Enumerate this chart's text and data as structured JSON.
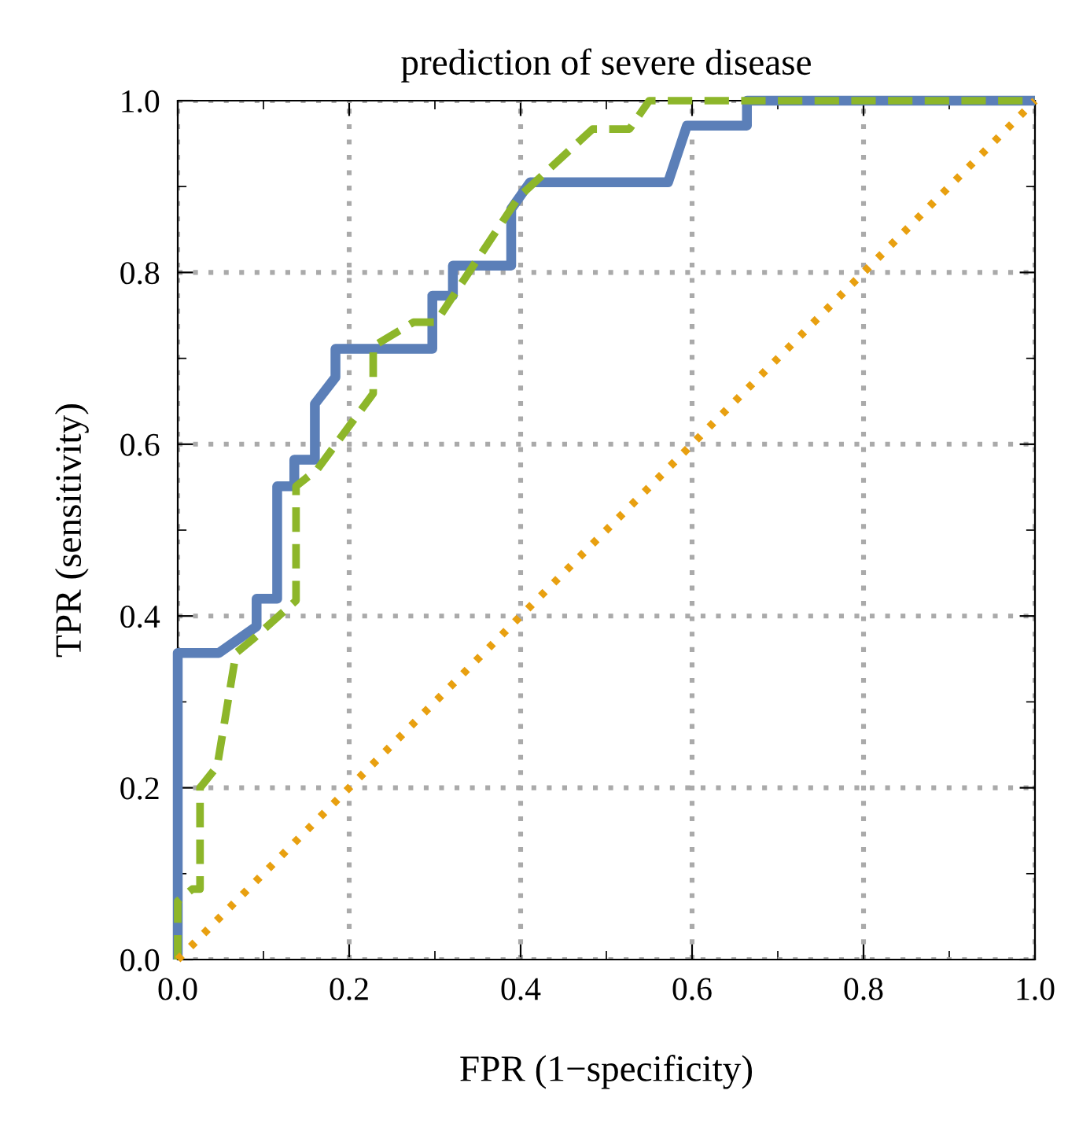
{
  "chart_data": {
    "type": "line",
    "title": "prediction of severe disease",
    "xlabel": "FPR (1−specificity)",
    "ylabel": "TPR (sensitivity)",
    "xlim": [
      0,
      1
    ],
    "ylim": [
      0,
      1
    ],
    "xticks": [
      {
        "value": 0,
        "label": "0.0"
      },
      {
        "value": 0.2,
        "label": "0.2"
      },
      {
        "value": 0.4,
        "label": "0.4"
      },
      {
        "value": 0.6,
        "label": "0.6"
      },
      {
        "value": 0.8,
        "label": "0.8"
      },
      {
        "value": 1,
        "label": "1.0"
      }
    ],
    "yticks": [
      {
        "value": 0,
        "label": "0.0"
      },
      {
        "value": 0.2,
        "label": "0.2"
      },
      {
        "value": 0.4,
        "label": "0.4"
      },
      {
        "value": 0.6,
        "label": "0.6"
      },
      {
        "value": 0.8,
        "label": "0.8"
      },
      {
        "value": 1,
        "label": "1.0"
      }
    ],
    "grid": true,
    "legend": false,
    "marker": "none",
    "series": [
      {
        "color": "#5b7fb8",
        "line_style": "solid",
        "x": [
          0,
          0,
          0.048,
          0.092,
          0.092,
          0.116,
          0.116,
          0.136,
          0.136,
          0.16,
          0.16,
          0.184,
          0.184,
          0.297,
          0.297,
          0.321,
          0.321,
          0.389,
          0.389,
          0.411,
          0.572,
          0.594,
          0.664,
          0.664,
          1
        ],
        "values": [
          0,
          0.357,
          0.357,
          0.388,
          0.42,
          0.42,
          0.551,
          0.551,
          0.582,
          0.582,
          0.647,
          0.678,
          0.711,
          0.711,
          0.773,
          0.773,
          0.808,
          0.808,
          0.874,
          0.905,
          0.905,
          0.971,
          0.971,
          1,
          1
        ]
      },
      {
        "color": "#8db62a",
        "line_style": "dashed",
        "x": [
          0,
          0,
          0.017,
          0.026,
          0.026,
          0.046,
          0.068,
          0.09,
          0.138,
          0.138,
          0.163,
          0.228,
          0.228,
          0.275,
          0.301,
          0.398,
          0.484,
          0.527,
          0.55,
          1
        ],
        "values": [
          0,
          0.068,
          0.082,
          0.082,
          0.2,
          0.225,
          0.357,
          0.375,
          0.418,
          0.551,
          0.571,
          0.659,
          0.714,
          0.742,
          0.742,
          0.888,
          0.967,
          0.967,
          1,
          1
        ]
      },
      {
        "color": "#e8a010",
        "line_style": "dotted",
        "x": [
          0,
          1
        ],
        "values": [
          0,
          1
        ]
      }
    ]
  }
}
